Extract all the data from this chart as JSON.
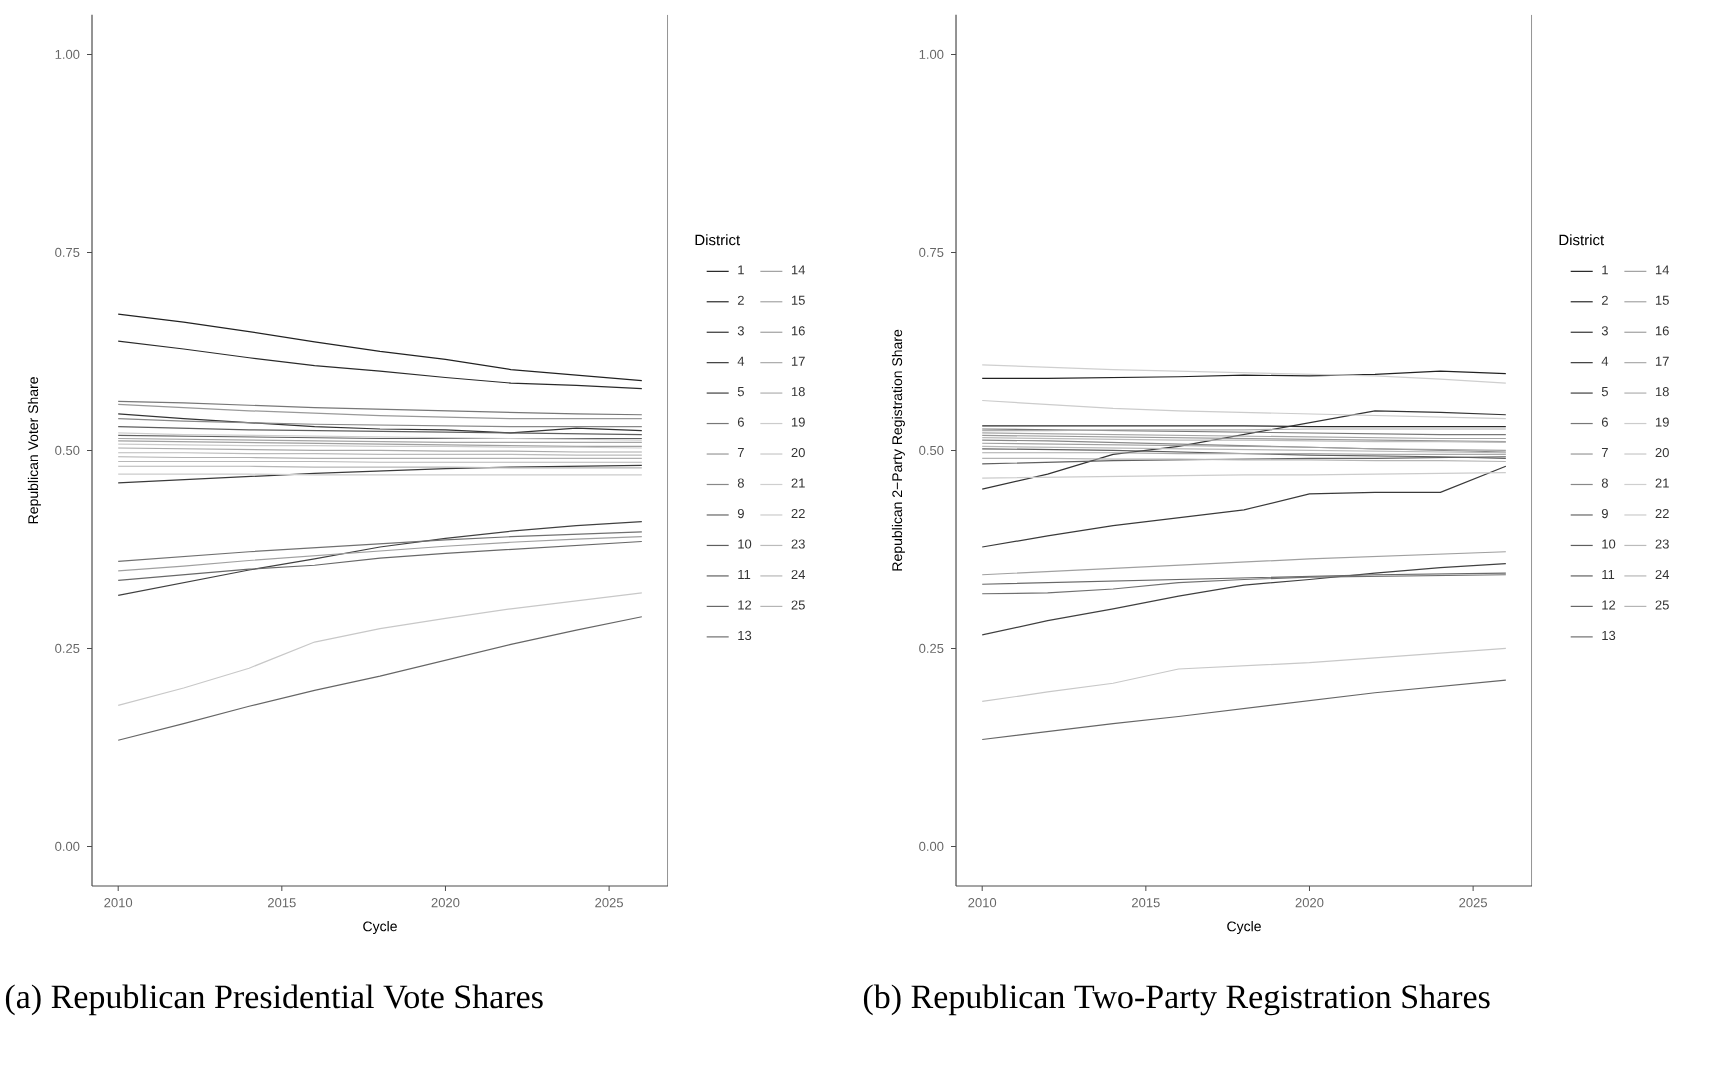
{
  "chart_data": [
    {
      "type": "line",
      "xlabel": "Cycle",
      "ylabel": "Republican Voter Share",
      "legend_title": "District",
      "legend": "right",
      "marker": "none",
      "line_style": "solid",
      "annotations": [
        "(a) Republican Presidential Vote Shares"
      ],
      "xlim": [
        2009.2,
        2026.8
      ],
      "xticks": [
        2010,
        2015,
        2020,
        2025
      ],
      "ylim": [
        -0.05,
        1.05
      ],
      "yticks": [
        {
          "value": 0,
          "label": "0.00"
        },
        {
          "value": 0.25,
          "label": "0.25"
        },
        {
          "value": 0.5,
          "label": "0.50"
        },
        {
          "value": 0.75,
          "label": "0.75"
        },
        {
          "value": 1,
          "label": "1.00"
        }
      ],
      "x": [
        2010,
        2012,
        2014,
        2016,
        2018,
        2020,
        2022,
        2024,
        2026
      ],
      "series": [
        {
          "name": "1",
          "color": "#222222",
          "values": [
            0.672,
            0.662,
            0.65,
            0.637,
            0.625,
            0.615,
            0.602,
            0.595,
            0.588
          ]
        },
        {
          "name": "2",
          "color": "#2a2a2a",
          "values": [
            0.638,
            0.628,
            0.617,
            0.607,
            0.6,
            0.592,
            0.585,
            0.582,
            0.578
          ]
        },
        {
          "name": "3",
          "color": "#333333",
          "values": [
            0.546,
            0.54,
            0.535,
            0.53,
            0.527,
            0.526,
            0.522,
            0.528,
            0.525
          ]
        },
        {
          "name": "4",
          "color": "#3a3a3a",
          "values": [
            0.459,
            0.463,
            0.467,
            0.471,
            0.474,
            0.477,
            0.479,
            0.48,
            0.481
          ]
        },
        {
          "name": "5",
          "color": "#404040",
          "values": [
            0.317,
            0.333,
            0.349,
            0.363,
            0.378,
            0.389,
            0.398,
            0.405,
            0.41
          ]
        },
        {
          "name": "6",
          "color": "#777777",
          "values": [
            0.562,
            0.56,
            0.557,
            0.554,
            0.552,
            0.55,
            0.548,
            0.546,
            0.545
          ]
        },
        {
          "name": "7",
          "color": "#999999",
          "values": [
            0.558,
            0.554,
            0.55,
            0.547,
            0.544,
            0.542,
            0.54,
            0.54,
            0.54
          ]
        },
        {
          "name": "8",
          "color": "#888888",
          "values": [
            0.54,
            0.537,
            0.535,
            0.533,
            0.532,
            0.531,
            0.53,
            0.53,
            0.53
          ]
        },
        {
          "name": "9",
          "color": "#666666",
          "values": [
            0.134,
            0.155,
            0.177,
            0.197,
            0.215,
            0.235,
            0.255,
            0.273,
            0.29
          ]
        },
        {
          "name": "10",
          "color": "#5e5e5e",
          "values": [
            0.53,
            0.528,
            0.526,
            0.525,
            0.524,
            0.523,
            0.522,
            0.521,
            0.52
          ]
        },
        {
          "name": "11",
          "color": "#606060",
          "values": [
            0.519,
            0.518,
            0.517,
            0.516,
            0.515,
            0.515,
            0.515,
            0.515,
            0.515
          ]
        },
        {
          "name": "12",
          "color": "#686868",
          "values": [
            0.336,
            0.343,
            0.35,
            0.355,
            0.364,
            0.37,
            0.375,
            0.38,
            0.385
          ]
        },
        {
          "name": "13",
          "color": "#707070",
          "values": [
            0.36,
            0.366,
            0.372,
            0.377,
            0.382,
            0.387,
            0.391,
            0.394,
            0.397
          ]
        },
        {
          "name": "14",
          "color": "#a0a0a0",
          "values": [
            0.348,
            0.354,
            0.361,
            0.367,
            0.373,
            0.379,
            0.384,
            0.388,
            0.391
          ]
        },
        {
          "name": "15",
          "color": "#a5a5a5",
          "values": [
            0.515,
            0.514,
            0.513,
            0.512,
            0.511,
            0.51,
            0.51,
            0.51,
            0.51
          ]
        },
        {
          "name": "16",
          "color": "#a0a0a0",
          "values": [
            0.512,
            0.511,
            0.51,
            0.509,
            0.508,
            0.507,
            0.506,
            0.505,
            0.505
          ]
        },
        {
          "name": "17",
          "color": "#aaaaaa",
          "values": [
            0.503,
            0.502,
            0.501,
            0.5,
            0.5,
            0.499,
            0.499,
            0.498,
            0.498
          ]
        },
        {
          "name": "18",
          "color": "#b0b0b0",
          "values": [
            0.492,
            0.491,
            0.491,
            0.49,
            0.49,
            0.49,
            0.49,
            0.49,
            0.49
          ]
        },
        {
          "name": "19",
          "color": "#cccccc",
          "values": [
            0.47,
            0.47,
            0.47,
            0.469,
            0.469,
            0.469,
            0.469,
            0.469,
            0.469
          ]
        },
        {
          "name": "20",
          "color": "#c8c8c8",
          "values": [
            0.178,
            0.2,
            0.225,
            0.258,
            0.275,
            0.288,
            0.3,
            0.31,
            0.32
          ]
        },
        {
          "name": "21",
          "color": "#cfcfcf",
          "values": [
            0.522,
            0.52,
            0.519,
            0.518,
            0.517,
            0.516,
            0.515,
            0.514,
            0.513
          ]
        },
        {
          "name": "22",
          "color": "#cccccc",
          "values": [
            0.508,
            0.507,
            0.506,
            0.506,
            0.505,
            0.505,
            0.504,
            0.504,
            0.503
          ]
        },
        {
          "name": "23",
          "color": "#bbbbbb",
          "values": [
            0.497,
            0.497,
            0.496,
            0.496,
            0.495,
            0.495,
            0.495,
            0.494,
            0.494
          ]
        },
        {
          "name": "24",
          "color": "#b8b8b8",
          "values": [
            0.486,
            0.486,
            0.486,
            0.486,
            0.485,
            0.485,
            0.485,
            0.485,
            0.485
          ]
        },
        {
          "name": "25",
          "color": "#b5b5b5",
          "values": [
            0.48,
            0.48,
            0.48,
            0.479,
            0.479,
            0.479,
            0.478,
            0.478,
            0.478
          ]
        }
      ]
    },
    {
      "type": "line",
      "xlabel": "Cycle",
      "ylabel": "Republican 2−Party Registration Share",
      "legend_title": "District",
      "legend": "right",
      "marker": "none",
      "line_style": "solid",
      "annotations": [
        "(b) Republican Two-Party Registration Shares"
      ],
      "xlim": [
        2009.2,
        2026.8
      ],
      "xticks": [
        2010,
        2015,
        2020,
        2025
      ],
      "ylim": [
        -0.05,
        1.05
      ],
      "yticks": [
        {
          "value": 0,
          "label": "0.00"
        },
        {
          "value": 0.25,
          "label": "0.25"
        },
        {
          "value": 0.5,
          "label": "0.50"
        },
        {
          "value": 0.75,
          "label": "0.75"
        },
        {
          "value": 1,
          "label": "1.00"
        }
      ],
      "x": [
        2010,
        2012,
        2014,
        2016,
        2018,
        2020,
        2022,
        2024,
        2026
      ],
      "series": [
        {
          "name": "1",
          "color": "#222222",
          "values": [
            0.591,
            0.591,
            0.592,
            0.593,
            0.595,
            0.594,
            0.596,
            0.6,
            0.597
          ]
        },
        {
          "name": "2",
          "color": "#2a2a2a",
          "values": [
            0.531,
            0.531,
            0.531,
            0.531,
            0.531,
            0.53,
            0.53,
            0.53,
            0.53
          ]
        },
        {
          "name": "3",
          "color": "#333333",
          "values": [
            0.451,
            0.47,
            0.495,
            0.505,
            0.52,
            0.535,
            0.55,
            0.548,
            0.545
          ]
        },
        {
          "name": "4",
          "color": "#3a3a3a",
          "values": [
            0.378,
            0.392,
            0.405,
            0.415,
            0.425,
            0.445,
            0.447,
            0.447,
            0.48
          ]
        },
        {
          "name": "5",
          "color": "#404040",
          "values": [
            0.267,
            0.285,
            0.3,
            0.316,
            0.33,
            0.337,
            0.345,
            0.352,
            0.357
          ]
        },
        {
          "name": "6",
          "color": "#777777",
          "values": [
            0.527,
            0.526,
            0.525,
            0.524,
            0.523,
            0.522,
            0.521,
            0.52,
            0.52
          ]
        },
        {
          "name": "7",
          "color": "#999999",
          "values": [
            0.519,
            0.518,
            0.517,
            0.516,
            0.515,
            0.514,
            0.513,
            0.512,
            0.511
          ]
        },
        {
          "name": "8",
          "color": "#888888",
          "values": [
            0.513,
            0.512,
            0.51,
            0.508,
            0.506,
            0.504,
            0.502,
            0.5,
            0.498
          ]
        },
        {
          "name": "9",
          "color": "#666666",
          "values": [
            0.135,
            0.145,
            0.155,
            0.164,
            0.174,
            0.184,
            0.194,
            0.202,
            0.21
          ]
        },
        {
          "name": "10",
          "color": "#5e5e5e",
          "values": [
            0.502,
            0.501,
            0.5,
            0.498,
            0.496,
            0.494,
            0.493,
            0.492,
            0.49
          ]
        },
        {
          "name": "11",
          "color": "#606060",
          "values": [
            0.483,
            0.485,
            0.487,
            0.488,
            0.489,
            0.49,
            0.49,
            0.491,
            0.492
          ]
        },
        {
          "name": "12",
          "color": "#686868",
          "values": [
            0.331,
            0.333,
            0.335,
            0.337,
            0.339,
            0.341,
            0.343,
            0.344,
            0.345
          ]
        },
        {
          "name": "13",
          "color": "#707070",
          "values": [
            0.319,
            0.32,
            0.325,
            0.333,
            0.337,
            0.34,
            0.341,
            0.342,
            0.343
          ]
        },
        {
          "name": "14",
          "color": "#a0a0a0",
          "values": [
            0.343,
            0.347,
            0.351,
            0.355,
            0.359,
            0.363,
            0.366,
            0.369,
            0.372
          ]
        },
        {
          "name": "15",
          "color": "#a5a5a5",
          "values": [
            0.522,
            0.521,
            0.52,
            0.519,
            0.518,
            0.517,
            0.516,
            0.515,
            0.515
          ]
        },
        {
          "name": "16",
          "color": "#a0a0a0",
          "values": [
            0.509,
            0.508,
            0.507,
            0.506,
            0.505,
            0.504,
            0.502,
            0.501,
            0.5
          ]
        },
        {
          "name": "17",
          "color": "#aaaaaa",
          "values": [
            0.497,
            0.497,
            0.497,
            0.496,
            0.496,
            0.496,
            0.495,
            0.495,
            0.495
          ]
        },
        {
          "name": "18",
          "color": "#b0b0b0",
          "values": [
            0.525,
            0.525,
            0.526,
            0.526,
            0.526,
            0.527,
            0.527,
            0.527,
            0.527
          ]
        },
        {
          "name": "19",
          "color": "#cccccc",
          "values": [
            0.465,
            0.466,
            0.467,
            0.468,
            0.469,
            0.469,
            0.47,
            0.471,
            0.472
          ]
        },
        {
          "name": "20",
          "color": "#c8c8c8",
          "values": [
            0.183,
            0.195,
            0.206,
            0.224,
            0.228,
            0.232,
            0.238,
            0.244,
            0.25
          ]
        },
        {
          "name": "21",
          "color": "#cfcfcf",
          "values": [
            0.608,
            0.605,
            0.602,
            0.6,
            0.598,
            0.596,
            0.594,
            0.59,
            0.585
          ]
        },
        {
          "name": "22",
          "color": "#cccccc",
          "values": [
            0.563,
            0.558,
            0.553,
            0.55,
            0.548,
            0.546,
            0.544,
            0.542,
            0.54
          ]
        },
        {
          "name": "23",
          "color": "#bbbbbb",
          "values": [
            0.516,
            0.515,
            0.514,
            0.513,
            0.513,
            0.512,
            0.511,
            0.511,
            0.51
          ]
        },
        {
          "name": "24",
          "color": "#b8b8b8",
          "values": [
            0.505,
            0.504,
            0.503,
            0.502,
            0.501,
            0.5,
            0.499,
            0.498,
            0.497
          ]
        },
        {
          "name": "25",
          "color": "#b5b5b5",
          "values": [
            0.49,
            0.49,
            0.489,
            0.489,
            0.488,
            0.488,
            0.487,
            0.487,
            0.486
          ]
        }
      ]
    }
  ]
}
